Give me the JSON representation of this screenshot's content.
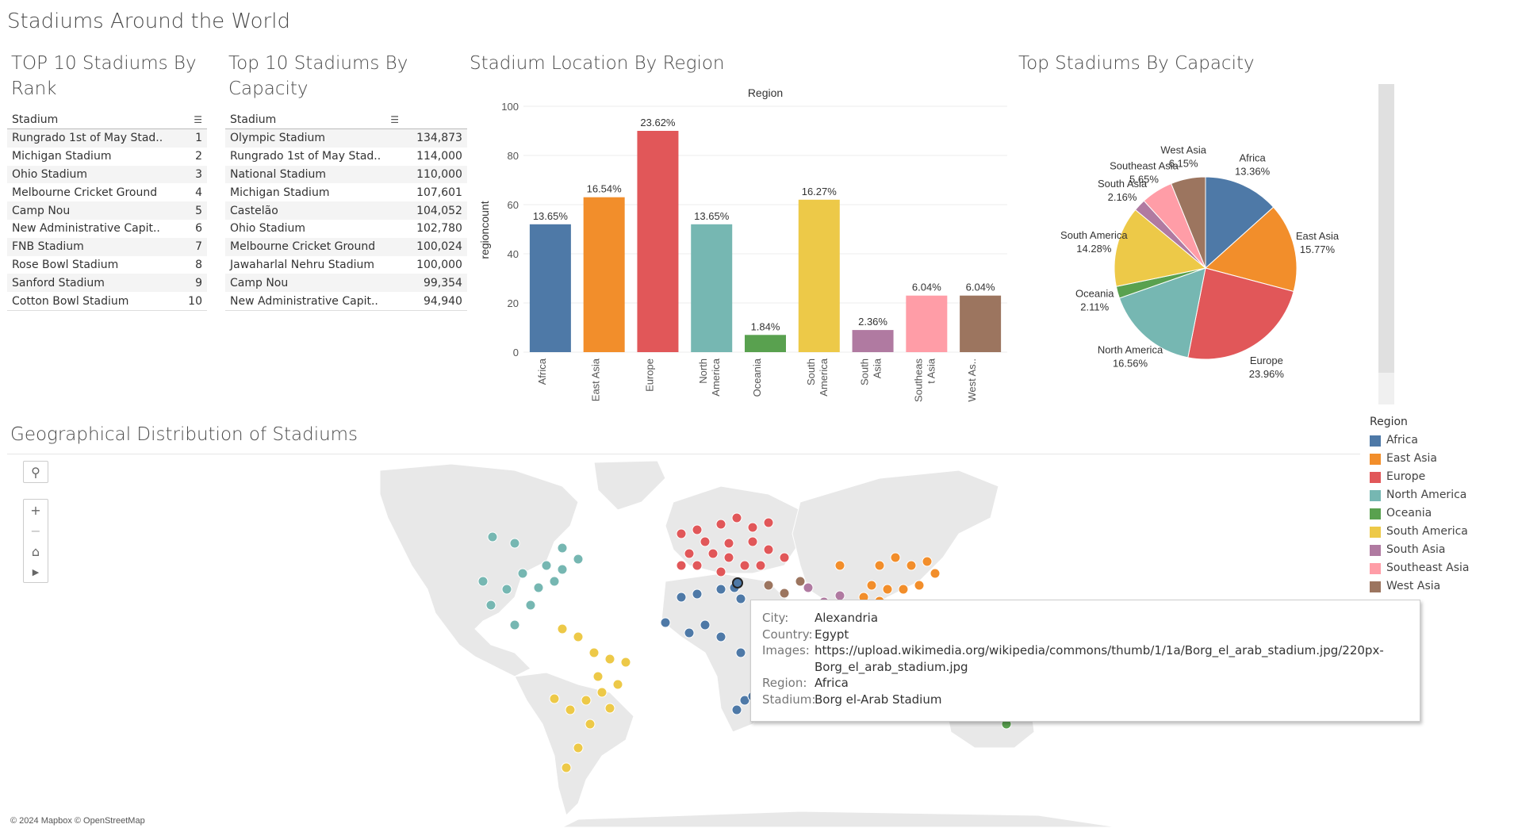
{
  "dashboard_title": "Stadiums Around the World",
  "rank_table": {
    "title": "TOP 10 Stadiums By Rank",
    "header": "Stadium",
    "rows": [
      {
        "name": "Rungrado 1st of May Stad..",
        "value": "1"
      },
      {
        "name": "Michigan Stadium",
        "value": "2"
      },
      {
        "name": "Ohio Stadium",
        "value": "3"
      },
      {
        "name": "Melbourne Cricket Ground",
        "value": "4"
      },
      {
        "name": "Camp Nou",
        "value": "5"
      },
      {
        "name": "New Administrative Capit..",
        "value": "6"
      },
      {
        "name": "FNB Stadium",
        "value": "7"
      },
      {
        "name": "Rose Bowl Stadium",
        "value": "8"
      },
      {
        "name": "Sanford Stadium",
        "value": "9"
      },
      {
        "name": "Cotton Bowl Stadium",
        "value": "10"
      }
    ]
  },
  "capacity_table": {
    "title": "Top 10 Stadiums By Capacity",
    "header": "Stadium",
    "rows": [
      {
        "name": "Olympic Stadium",
        "value": "134,873"
      },
      {
        "name": "Rungrado 1st of May Stad..",
        "value": "114,000"
      },
      {
        "name": "National Stadium",
        "value": "110,000"
      },
      {
        "name": "Michigan Stadium",
        "value": "107,601"
      },
      {
        "name": "Castelão",
        "value": "104,052"
      },
      {
        "name": "Ohio Stadium",
        "value": "102,780"
      },
      {
        "name": "Melbourne Cricket Ground",
        "value": "100,024"
      },
      {
        "name": "Jawaharlal Nehru Stadium",
        "value": "100,000"
      },
      {
        "name": "Camp Nou",
        "value": "99,354"
      },
      {
        "name": "New Administrative Capit..",
        "value": "94,940"
      }
    ]
  },
  "bar_section_title": "Stadium Location By Region",
  "pie_section_title": "Top Stadiums By Capacity",
  "map_section_title": "Geographical Distribution of Stadiums",
  "map_attribution": "© 2024 Mapbox  © OpenStreetMap",
  "region_colors": {
    "Africa": "#4e79a7",
    "East Asia": "#f28e2b",
    "Europe": "#e15759",
    "North America": "#76b7b2",
    "Oceania": "#59a14f",
    "South America": "#edc948",
    "South Asia": "#b07aa1",
    "Southeast Asia": "#ff9da7",
    "West Asia": "#9c755f"
  },
  "legend": {
    "title": "Region",
    "items": [
      "Africa",
      "East Asia",
      "Europe",
      "North America",
      "Oceania",
      "South America",
      "South Asia",
      "Southeast Asia",
      "West Asia"
    ]
  },
  "tooltip": {
    "rows": [
      {
        "key": "City:",
        "value": "Alexandria"
      },
      {
        "key": "Country:",
        "value": "Egypt"
      },
      {
        "key": "Images:",
        "value": "https://upload.wikimedia.org/wikipedia/commons/thumb/1/1a/Borg_el_arab_stadium.jpg/220px-"
      },
      {
        "key": "",
        "value": "Borg_el_arab_stadium.jpg"
      },
      {
        "key": "Region:",
        "value": "Africa"
      },
      {
        "key": "Stadium:",
        "value": "Borg el-Arab Stadium"
      }
    ]
  },
  "chart_data": [
    {
      "type": "bar",
      "title": "Region",
      "ylabel": "regioncount",
      "ylim": [
        0,
        100
      ],
      "yticks": [
        0,
        20,
        40,
        60,
        80,
        100
      ],
      "categories": [
        "Africa",
        "East Asia",
        "Europe",
        "North America",
        "Oceania",
        "South America",
        "South Asia",
        "Southeast Asia",
        "West Asia"
      ],
      "category_labels": [
        [
          "Africa"
        ],
        [
          "East Asia"
        ],
        [
          "Europe"
        ],
        [
          "North",
          "America"
        ],
        [
          "Oceania"
        ],
        [
          "South",
          "America"
        ],
        [
          "South",
          "Asia"
        ],
        [
          "Southeas",
          "t Asia"
        ],
        [
          "West As.."
        ]
      ],
      "values": [
        52,
        63,
        90,
        52,
        7,
        62,
        9,
        23,
        23
      ],
      "data_labels": [
        "13.65%",
        "16.54%",
        "23.62%",
        "13.65%",
        "1.84%",
        "16.27%",
        "2.36%",
        "6.04%",
        "6.04%"
      ],
      "grid": true
    },
    {
      "type": "pie",
      "slices": [
        {
          "label": "Africa",
          "value": 13.36,
          "text": "13.36%"
        },
        {
          "label": "East Asia",
          "value": 15.77,
          "text": "15.77%"
        },
        {
          "label": "Europe",
          "value": 23.96,
          "text": "23.96%"
        },
        {
          "label": "North America",
          "value": 16.56,
          "text": "16.56%"
        },
        {
          "label": "Oceania",
          "value": 2.11,
          "text": "2.11%"
        },
        {
          "label": "South America",
          "value": 14.28,
          "text": "14.28%"
        },
        {
          "label": "South Asia",
          "value": 2.16,
          "text": "2.16%"
        },
        {
          "label": "Southeast Asia",
          "value": 5.65,
          "text": "5.65%"
        },
        {
          "label": "West Asia",
          "value": 6.15,
          "text": "6.15%"
        }
      ]
    }
  ]
}
